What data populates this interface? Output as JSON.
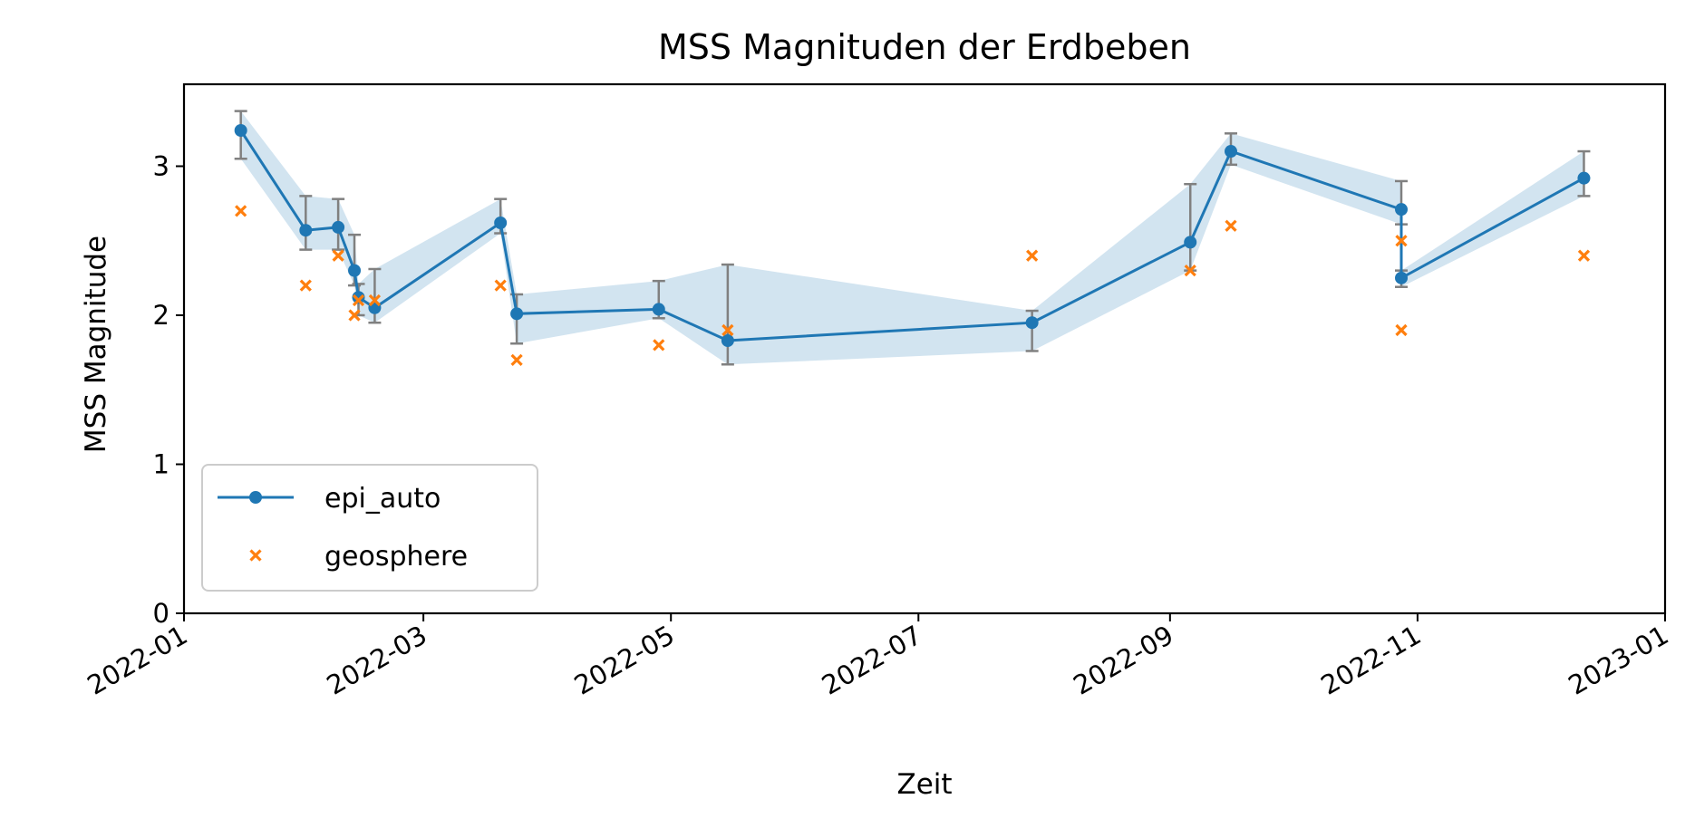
{
  "chart_data": {
    "type": "line",
    "title": "MSS Magnituden der Erdbeben",
    "xlabel": "Zeit",
    "ylabel": "MSS Magnitude",
    "xlim": [
      "2022-01-01",
      "2023-01-01"
    ],
    "ylim": [
      0,
      3.55
    ],
    "x_ticks": [
      "2022-01",
      "2022-03",
      "2022-05",
      "2022-07",
      "2022-09",
      "2022-11",
      "2023-01"
    ],
    "y_ticks": [
      0,
      1,
      2,
      3
    ],
    "legend_position": "lower-left",
    "series": [
      {
        "name": "epi_auto",
        "style": "line-with-markers",
        "color": "#1f77b4",
        "band_color": "#1f77b4",
        "errorbar_color": "#808080",
        "points": [
          {
            "x": "2022-01-15",
            "y": 3.24,
            "low": 3.05,
            "high": 3.37
          },
          {
            "x": "2022-01-31",
            "y": 2.57,
            "low": 2.44,
            "high": 2.8
          },
          {
            "x": "2022-02-08",
            "y": 2.59,
            "low": 2.44,
            "high": 2.78
          },
          {
            "x": "2022-02-12",
            "y": 2.3,
            "low": 2.2,
            "high": 2.54
          },
          {
            "x": "2022-02-13",
            "y": 2.12,
            "low": 2.0,
            "high": 2.21
          },
          {
            "x": "2022-02-17",
            "y": 2.05,
            "low": 1.95,
            "high": 2.31
          },
          {
            "x": "2022-03-20",
            "y": 2.62,
            "low": 2.55,
            "high": 2.78
          },
          {
            "x": "2022-03-24",
            "y": 2.01,
            "low": 1.81,
            "high": 2.14
          },
          {
            "x": "2022-04-28",
            "y": 2.04,
            "low": 1.98,
            "high": 2.23
          },
          {
            "x": "2022-05-15",
            "y": 1.83,
            "low": 1.67,
            "high": 2.34
          },
          {
            "x": "2022-07-29",
            "y": 1.95,
            "low": 1.76,
            "high": 2.03
          },
          {
            "x": "2022-09-06",
            "y": 2.49,
            "low": 2.3,
            "high": 2.88
          },
          {
            "x": "2022-09-16",
            "y": 3.1,
            "low": 3.01,
            "high": 3.22
          },
          {
            "x": "2022-10-28",
            "y": 2.71,
            "low": 2.61,
            "high": 2.9
          },
          {
            "x": "2022-10-28",
            "y": 2.25,
            "low": 2.19,
            "high": 2.3
          },
          {
            "x": "2022-12-12",
            "y": 2.92,
            "low": 2.8,
            "high": 3.1
          }
        ]
      },
      {
        "name": "geosphere",
        "style": "x-markers",
        "color": "#ff7f0e",
        "points": [
          {
            "x": "2022-01-15",
            "y": 2.7
          },
          {
            "x": "2022-01-31",
            "y": 2.2
          },
          {
            "x": "2022-02-08",
            "y": 2.4
          },
          {
            "x": "2022-02-12",
            "y": 2.0
          },
          {
            "x": "2022-02-13",
            "y": 2.1
          },
          {
            "x": "2022-02-17",
            "y": 2.1
          },
          {
            "x": "2022-03-20",
            "y": 2.2
          },
          {
            "x": "2022-03-24",
            "y": 1.7
          },
          {
            "x": "2022-04-28",
            "y": 1.8
          },
          {
            "x": "2022-05-15",
            "y": 1.9
          },
          {
            "x": "2022-07-29",
            "y": 2.4
          },
          {
            "x": "2022-09-06",
            "y": 2.3
          },
          {
            "x": "2022-09-16",
            "y": 2.6
          },
          {
            "x": "2022-10-28",
            "y": 2.5
          },
          {
            "x": "2022-10-28",
            "y": 1.9
          },
          {
            "x": "2022-12-12",
            "y": 2.4
          }
        ]
      }
    ]
  }
}
